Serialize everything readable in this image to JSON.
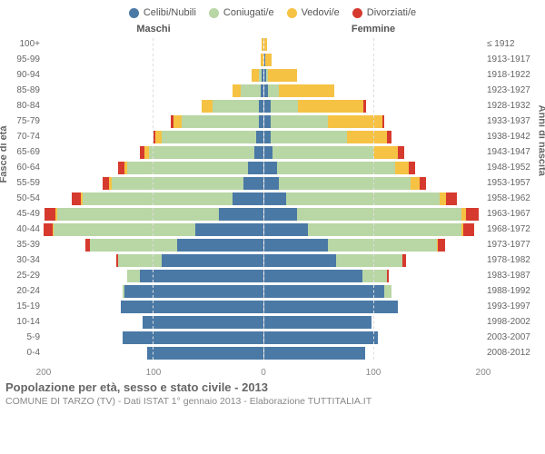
{
  "type": "population-pyramid-stacked",
  "legend": [
    {
      "label": "Celibi/Nubili",
      "color": "#4a79a6"
    },
    {
      "label": "Coniugati/e",
      "color": "#b9d6a5"
    },
    {
      "label": "Vedovi/e",
      "color": "#f6c244"
    },
    {
      "label": "Divorziati/e",
      "color": "#d63a2e"
    }
  ],
  "headers": {
    "male": "Maschi",
    "female": "Femmine"
  },
  "y_left_label": "Fasce di età",
  "y_right_label": "Anni di nascita",
  "title": "Popolazione per età, sesso e stato civile - 2013",
  "subtitle": "COMUNE DI TARZO (TV) - Dati ISTAT 1° gennaio 2013 - Elaborazione TUTTITALIA.IT",
  "x_max": 200,
  "x_ticks": [
    200,
    100,
    0,
    100,
    200
  ],
  "background_color": "#ffffff",
  "grid_color": "#dddddd",
  "text_color": "#666666",
  "rows": [
    {
      "age": "100+",
      "years": "≤ 1912",
      "m": [
        0,
        0,
        1,
        0
      ],
      "f": [
        0,
        0,
        3,
        0
      ]
    },
    {
      "age": "95-99",
      "years": "1913-1917",
      "m": [
        0,
        0,
        2,
        0
      ],
      "f": [
        1,
        0,
        6,
        0
      ]
    },
    {
      "age": "90-94",
      "years": "1918-1922",
      "m": [
        1,
        3,
        6,
        0
      ],
      "f": [
        2,
        2,
        26,
        0
      ]
    },
    {
      "age": "85-89",
      "years": "1923-1927",
      "m": [
        2,
        18,
        8,
        0
      ],
      "f": [
        4,
        10,
        50,
        0
      ]
    },
    {
      "age": "80-84",
      "years": "1928-1932",
      "m": [
        4,
        42,
        10,
        0
      ],
      "f": [
        6,
        25,
        60,
        2
      ]
    },
    {
      "age": "75-79",
      "years": "1933-1937",
      "m": [
        4,
        70,
        8,
        2
      ],
      "f": [
        6,
        52,
        50,
        2
      ]
    },
    {
      "age": "70-74",
      "years": "1938-1942",
      "m": [
        6,
        86,
        6,
        2
      ],
      "f": [
        6,
        70,
        36,
        4
      ]
    },
    {
      "age": "65-69",
      "years": "1943-1947",
      "m": [
        8,
        96,
        4,
        4
      ],
      "f": [
        8,
        92,
        22,
        6
      ]
    },
    {
      "age": "60-64",
      "years": "1948-1952",
      "m": [
        14,
        110,
        2,
        6
      ],
      "f": [
        12,
        108,
        12,
        6
      ]
    },
    {
      "age": "55-59",
      "years": "1953-1957",
      "m": [
        18,
        120,
        2,
        6
      ],
      "f": [
        14,
        120,
        8,
        6
      ]
    },
    {
      "age": "50-54",
      "years": "1958-1962",
      "m": [
        28,
        136,
        2,
        8
      ],
      "f": [
        20,
        140,
        6,
        10
      ]
    },
    {
      "age": "45-49",
      "years": "1963-1967",
      "m": [
        40,
        148,
        1,
        10
      ],
      "f": [
        30,
        150,
        4,
        12
      ]
    },
    {
      "age": "40-44",
      "years": "1968-1972",
      "m": [
        62,
        130,
        1,
        8
      ],
      "f": [
        40,
        140,
        2,
        10
      ]
    },
    {
      "age": "35-39",
      "years": "1973-1977",
      "m": [
        78,
        80,
        0,
        4
      ],
      "f": [
        58,
        100,
        1,
        6
      ]
    },
    {
      "age": "30-34",
      "years": "1978-1982",
      "m": [
        92,
        40,
        0,
        2
      ],
      "f": [
        66,
        60,
        0,
        4
      ]
    },
    {
      "age": "25-29",
      "years": "1983-1987",
      "m": [
        112,
        12,
        0,
        0
      ],
      "f": [
        90,
        22,
        0,
        2
      ]
    },
    {
      "age": "20-24",
      "years": "1988-1992",
      "m": [
        126,
        2,
        0,
        0
      ],
      "f": [
        110,
        6,
        0,
        0
      ]
    },
    {
      "age": "15-19",
      "years": "1993-1997",
      "m": [
        130,
        0,
        0,
        0
      ],
      "f": [
        122,
        0,
        0,
        0
      ]
    },
    {
      "age": "10-14",
      "years": "1998-2002",
      "m": [
        110,
        0,
        0,
        0
      ],
      "f": [
        98,
        0,
        0,
        0
      ]
    },
    {
      "age": "5-9",
      "years": "2003-2007",
      "m": [
        128,
        0,
        0,
        0
      ],
      "f": [
        104,
        0,
        0,
        0
      ]
    },
    {
      "age": "0-4",
      "years": "2008-2012",
      "m": [
        106,
        0,
        0,
        0
      ],
      "f": [
        92,
        0,
        0,
        0
      ]
    }
  ]
}
